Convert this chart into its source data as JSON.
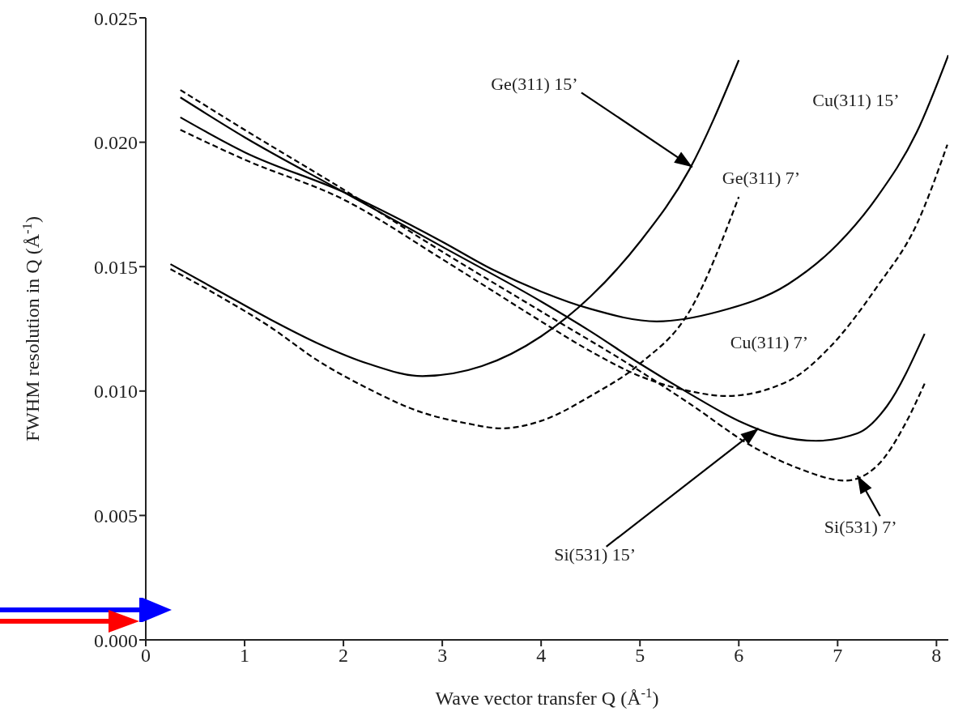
{
  "chart_data": {
    "type": "line",
    "xlabel": "Wave vector transfer Q (Å$^{-1}$)",
    "ylabel": "FWHM resolution in Q (Å$^{-1}$)",
    "xlim": [
      0,
      8.12
    ],
    "xticks": [
      0,
      1,
      2,
      3,
      4,
      5,
      6,
      7,
      8
    ],
    "ylim": [
      0,
      0.025
    ],
    "yticks": [
      {
        "value": 0,
        "label": "0.000"
      },
      {
        "value": 0.005,
        "label": "0.005"
      },
      {
        "value": 0.01,
        "label": "0.010"
      },
      {
        "value": 0.015,
        "label": "0.015"
      },
      {
        "value": 0.02,
        "label": "0.020"
      },
      {
        "value": 0.025,
        "label": "0.025"
      }
    ],
    "grid": false,
    "marker": "none",
    "series": [
      {
        "color": "#000000",
        "line_style": "solid",
        "x": [
          0.25,
          0.75,
          1.25,
          1.75,
          2.25,
          2.8,
          3.4,
          4.0,
          4.5,
          5.0,
          5.5,
          6.0
        ],
        "values": [
          0.0151,
          0.014,
          0.0129,
          0.0119,
          0.0111,
          0.0106,
          0.011,
          0.0122,
          0.0138,
          0.016,
          0.0189,
          0.0233
        ]
      },
      {
        "color": "#000000",
        "line_style": "dashed",
        "x": [
          0.25,
          0.75,
          1.25,
          1.75,
          2.25,
          2.75,
          3.25,
          3.6,
          4.0,
          4.5,
          5.0,
          5.5,
          6.0
        ],
        "values": [
          0.0149,
          0.0138,
          0.0126,
          0.0112,
          0.0101,
          0.0092,
          0.0087,
          0.0085,
          0.0088,
          0.0098,
          0.0111,
          0.0132,
          0.0178
        ]
      },
      {
        "color": "#000000",
        "line_style": "solid",
        "x": [
          0.35,
          1,
          2,
          3,
          3.5,
          4,
          4.5,
          5.17,
          5.8,
          6.5,
          7,
          7.4,
          7.8,
          8.12
        ],
        "values": [
          0.021,
          0.0196,
          0.018,
          0.016,
          0.0149,
          0.014,
          0.0133,
          0.0128,
          0.0132,
          0.0143,
          0.0159,
          0.0178,
          0.0204,
          0.0235
        ]
      },
      {
        "color": "#000000",
        "line_style": "dashed",
        "x": [
          0.35,
          1,
          2,
          3,
          3.44,
          4,
          4.5,
          5,
          5.5,
          5.87,
          6.5,
          6.93,
          7.4,
          7.8,
          8.11
        ],
        "values": [
          0.0205,
          0.0193,
          0.0177,
          0.0153,
          0.0142,
          0.0128,
          0.0116,
          0.0106,
          0.01,
          0.0098,
          0.0104,
          0.0118,
          0.0142,
          0.0167,
          0.0199
        ]
      },
      {
        "color": "#000000",
        "line_style": "solid",
        "x": [
          0.35,
          1,
          2,
          3,
          4,
          4.5,
          5,
          5.5,
          6,
          6.4,
          6.78,
          7.2,
          7.5,
          7.88
        ],
        "values": [
          0.0218,
          0.0202,
          0.018,
          0.0158,
          0.0136,
          0.0124,
          0.0111,
          0.0099,
          0.0088,
          0.0082,
          0.008,
          0.0083,
          0.0094,
          0.0123
        ]
      },
      {
        "color": "#000000",
        "line_style": "dashed",
        "x": [
          0.35,
          1,
          2,
          3,
          4,
          4.96,
          5.5,
          6.17,
          6.6,
          7.08,
          7.4,
          7.7,
          7.88
        ],
        "values": [
          0.0221,
          0.0205,
          0.0181,
          0.0156,
          0.0132,
          0.0109,
          0.0095,
          0.0077,
          0.0069,
          0.0064,
          0.007,
          0.0088,
          0.0103
        ]
      }
    ],
    "annotations": [
      {
        "text": "Ge(311) 15’",
        "x": 5.53,
        "y": 0.019
      },
      "Ge(311) 7’",
      "Cu(311) 15’",
      "Cu(311) 7’",
      {
        "text": "Si(531) 15’",
        "x": 6.2,
        "y": 0.0085
      },
      {
        "text": "Si(531) 7’",
        "x": 7.2,
        "y": 0.0066
      }
    ]
  }
}
